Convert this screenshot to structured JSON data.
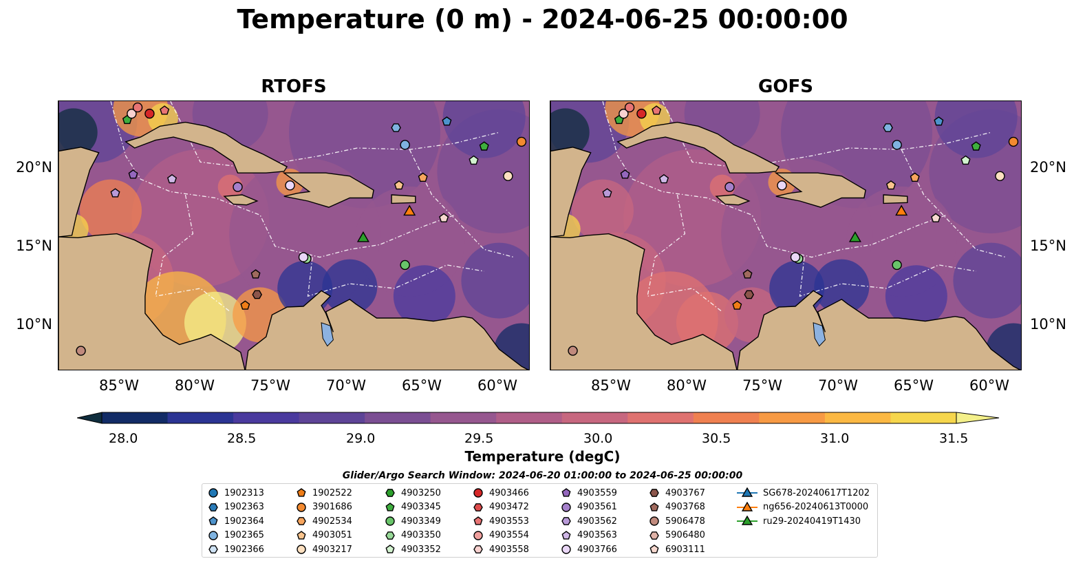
{
  "title": "Temperature (0 m) - 2024-06-25 00:00:00",
  "panels": [
    {
      "title": "RTOFS"
    },
    {
      "title": "GOFS"
    }
  ],
  "axes": {
    "lon_labels": [
      "85°W",
      "80°W",
      "75°W",
      "70°W",
      "65°W",
      "60°W"
    ],
    "lat_labels": [
      "20°N",
      "15°N",
      "10°N"
    ]
  },
  "colorbar": {
    "title": "Temperature (degC)",
    "tick_labels": [
      "28.0",
      "28.5",
      "29.0",
      "29.5",
      "30.0",
      "30.5",
      "31.0",
      "31.5"
    ],
    "colors": [
      "#0f2d3d",
      "#122b66",
      "#2b3493",
      "#4a3a9e",
      "#5e4497",
      "#7b4e93",
      "#96578f",
      "#b05e88",
      "#c7677f",
      "#df7270",
      "#ef8050",
      "#f79a44",
      "#fbb843",
      "#f6d64c",
      "#f4f08a"
    ]
  },
  "search_window": "Glider/Argo Search Window: 2024-06-20 01:00:00 to 2024-06-25 00:00:00",
  "legend": [
    {
      "label": "1902313",
      "marker": "circle",
      "color": "#1f77b4"
    },
    {
      "label": "1902363",
      "marker": "hexagon",
      "color": "#2a7bb8"
    },
    {
      "label": "1902364",
      "marker": "pentagon",
      "color": "#4d93cc"
    },
    {
      "label": "1902365",
      "marker": "circle",
      "color": "#7fb3e0"
    },
    {
      "label": "1902366",
      "marker": "hexagon",
      "color": "#cfe3f5"
    },
    {
      "label": "1902522",
      "marker": "pentagon",
      "color": "#ef7d17"
    },
    {
      "label": "3901686",
      "marker": "circle",
      "color": "#f38a30"
    },
    {
      "label": "4902534",
      "marker": "hexagon",
      "color": "#f7a55e"
    },
    {
      "label": "4903051",
      "marker": "pentagon",
      "color": "#fac48d"
    },
    {
      "label": "4903217",
      "marker": "circle",
      "color": "#fde0c0"
    },
    {
      "label": "4903250",
      "marker": "hexagon",
      "color": "#2ca02c"
    },
    {
      "label": "4903345",
      "marker": "pentagon",
      "color": "#3fae3f"
    },
    {
      "label": "4903349",
      "marker": "circle",
      "color": "#69c46a"
    },
    {
      "label": "4903350",
      "marker": "hexagon",
      "color": "#98d998"
    },
    {
      "label": "4903352",
      "marker": "pentagon",
      "color": "#d2f2cf"
    },
    {
      "label": "4903466",
      "marker": "circle",
      "color": "#d62728"
    },
    {
      "label": "4903472",
      "marker": "hexagon",
      "color": "#de4c4c"
    },
    {
      "label": "4903553",
      "marker": "pentagon",
      "color": "#e87474"
    },
    {
      "label": "4903554",
      "marker": "circle",
      "color": "#f0a09e"
    },
    {
      "label": "4903558",
      "marker": "hexagon",
      "color": "#f8d2d0"
    },
    {
      "label": "4903559",
      "marker": "pentagon",
      "color": "#9467bd"
    },
    {
      "label": "4903561",
      "marker": "circle",
      "color": "#a580cb"
    },
    {
      "label": "4903562",
      "marker": "hexagon",
      "color": "#b89ad8"
    },
    {
      "label": "4903563",
      "marker": "pentagon",
      "color": "#cfb7e6"
    },
    {
      "label": "4903766",
      "marker": "circle",
      "color": "#ead7f7"
    },
    {
      "label": "4903767",
      "marker": "hexagon",
      "color": "#8c564b"
    },
    {
      "label": "4903768",
      "marker": "pentagon",
      "color": "#a06a5e"
    },
    {
      "label": "5906478",
      "marker": "circle",
      "color": "#c08a7d"
    },
    {
      "label": "5906480",
      "marker": "hexagon",
      "color": "#e0b3a8"
    },
    {
      "label": "6903111",
      "marker": "pentagon",
      "color": "#f7d9d0"
    },
    {
      "label": "SG678-20240617T1202",
      "marker": "triangle-line",
      "color": "#1f77b4"
    },
    {
      "label": "ng656-20240613T0000",
      "marker": "triangle-line",
      "color": "#ff7f0e"
    },
    {
      "label": "ru29-20240419T1430",
      "marker": "triangle-line",
      "color": "#2ca02c"
    }
  ],
  "floats": [
    {
      "lon": -84.9,
      "lat": 23.3,
      "color": "#3fae3f",
      "marker": "pentagon"
    },
    {
      "lon": -84.6,
      "lat": 23.7,
      "color": "#f8d2d0",
      "marker": "circle"
    },
    {
      "lon": -84.2,
      "lat": 24.1,
      "color": "#e87474",
      "marker": "circle"
    },
    {
      "lon": -83.4,
      "lat": 23.7,
      "color": "#d62728",
      "marker": "circle"
    },
    {
      "lon": -82.4,
      "lat": 23.9,
      "color": "#e87474",
      "marker": "pentagon"
    },
    {
      "lon": -84.5,
      "lat": 19.8,
      "color": "#9467bd",
      "marker": "pentagon"
    },
    {
      "lon": -85.7,
      "lat": 18.6,
      "color": "#b89ad8",
      "marker": "pentagon"
    },
    {
      "lon": -81.9,
      "lat": 19.5,
      "color": "#cfb7e6",
      "marker": "pentagon"
    },
    {
      "lon": -77.5,
      "lat": 19.0,
      "color": "#a580cb",
      "marker": "circle"
    },
    {
      "lon": -74.0,
      "lat": 19.1,
      "color": "#ead7f7",
      "marker": "circle"
    },
    {
      "lon": -66.9,
      "lat": 22.8,
      "color": "#7fb3e0",
      "marker": "hexagon"
    },
    {
      "lon": -66.3,
      "lat": 21.7,
      "color": "#7fb3e0",
      "marker": "circle"
    },
    {
      "lon": -63.5,
      "lat": 23.2,
      "color": "#4d93cc",
      "marker": "pentagon"
    },
    {
      "lon": -61.0,
      "lat": 21.6,
      "color": "#3fae3f",
      "marker": "pentagon"
    },
    {
      "lon": -58.5,
      "lat": 21.9,
      "color": "#f38a30",
      "marker": "circle"
    },
    {
      "lon": -61.7,
      "lat": 20.7,
      "color": "#d2f2cf",
      "marker": "pentagon"
    },
    {
      "lon": -59.4,
      "lat": 19.7,
      "color": "#fde0c0",
      "marker": "circle"
    },
    {
      "lon": -65.1,
      "lat": 19.6,
      "color": "#f7a55e",
      "marker": "pentagon"
    },
    {
      "lon": -66.7,
      "lat": 19.1,
      "color": "#fac48d",
      "marker": "pentagon"
    },
    {
      "lon": -63.7,
      "lat": 17.0,
      "color": "#f7d9d0",
      "marker": "pentagon"
    },
    {
      "lon": -72.9,
      "lat": 14.4,
      "color": "#98d998",
      "marker": "circle"
    },
    {
      "lon": -73.1,
      "lat": 14.5,
      "color": "#ead7f7",
      "marker": "circle"
    },
    {
      "lon": -66.3,
      "lat": 14.0,
      "color": "#69c46a",
      "marker": "circle"
    },
    {
      "lon": -76.3,
      "lat": 13.4,
      "color": "#a06a5e",
      "marker": "pentagon"
    },
    {
      "lon": -76.2,
      "lat": 12.1,
      "color": "#8c564b",
      "marker": "hexagon"
    },
    {
      "lon": -77.0,
      "lat": 11.4,
      "color": "#ef7d17",
      "marker": "pentagon"
    },
    {
      "lon": -88.0,
      "lat": 8.5,
      "color": "#c08a7d",
      "marker": "circle"
    }
  ],
  "gliders": [
    {
      "lon": -66.0,
      "lat": 17.4,
      "color": "#ff7f0e"
    },
    {
      "lon": -69.1,
      "lat": 15.7,
      "color": "#2ca02c"
    }
  ]
}
